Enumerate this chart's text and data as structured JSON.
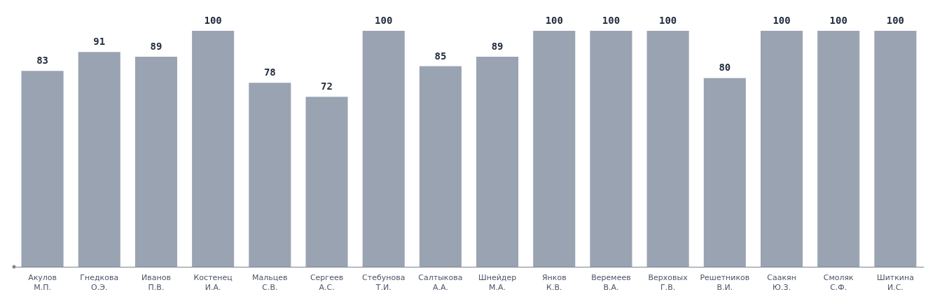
{
  "chart_data": {
    "type": "bar",
    "categories": [
      "Акулов М.П.",
      "Гнедкова О.Э.",
      "Иванов П.В.",
      "Костенец И.А.",
      "Мальцев С.В.",
      "Сергеев А.С.",
      "Стебунова Т.И.",
      "Салтыкова А.А.",
      "Шнейдер М.А.",
      "Янков К.В.",
      "Веремеев В.А.",
      "Верховых Г.В.",
      "Решетников В.И.",
      "Саакян Ю.З.",
      "Смоляк С.Ф.",
      "Шиткина И.С."
    ],
    "values": [
      83,
      91,
      89,
      100,
      78,
      72,
      100,
      85,
      89,
      100,
      100,
      100,
      80,
      100,
      100,
      100
    ],
    "color": "#9aa3b2",
    "data_labels": true
  }
}
